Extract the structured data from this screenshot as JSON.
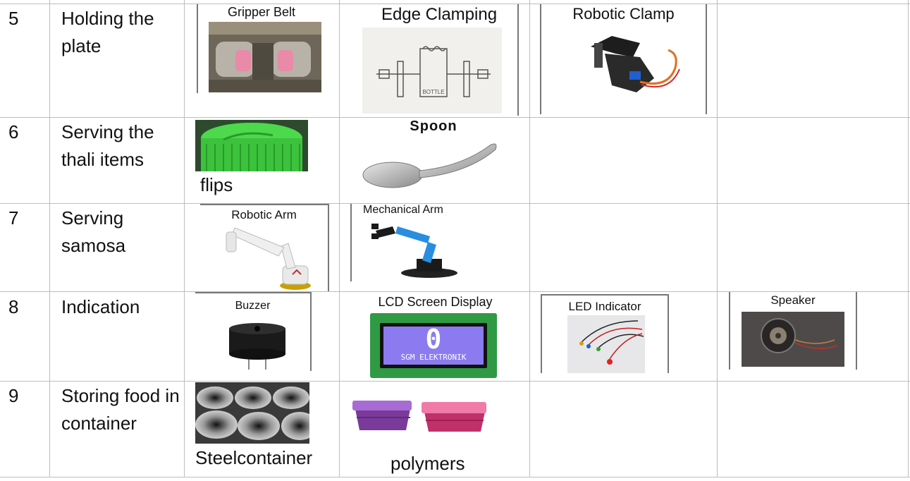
{
  "rows": [
    {
      "no": "5",
      "function": "Holding the plate",
      "options": [
        "Gripper Belt",
        "Edge Clamping",
        "Robotic Clamp"
      ],
      "bottle_label": "BOTTLE"
    },
    {
      "no": "6",
      "function": "Serving the thali items",
      "options": [
        "Spoon"
      ],
      "captions_below": [
        "flips"
      ]
    },
    {
      "no": "7",
      "function": "Serving samosa",
      "options": [
        "Robotic Arm",
        "Mechanical Arm"
      ]
    },
    {
      "no": "8",
      "function": "Indication",
      "options": [
        "Buzzer",
        "LCD Screen Display",
        "LED Indicator",
        "Speaker"
      ],
      "lcd_digit": "0",
      "lcd_text": "SGM ELEKTRONIK"
    },
    {
      "no": "9",
      "function": "Storing food in container",
      "captions_below": [
        "Steelcontainer",
        "polymers"
      ]
    }
  ]
}
